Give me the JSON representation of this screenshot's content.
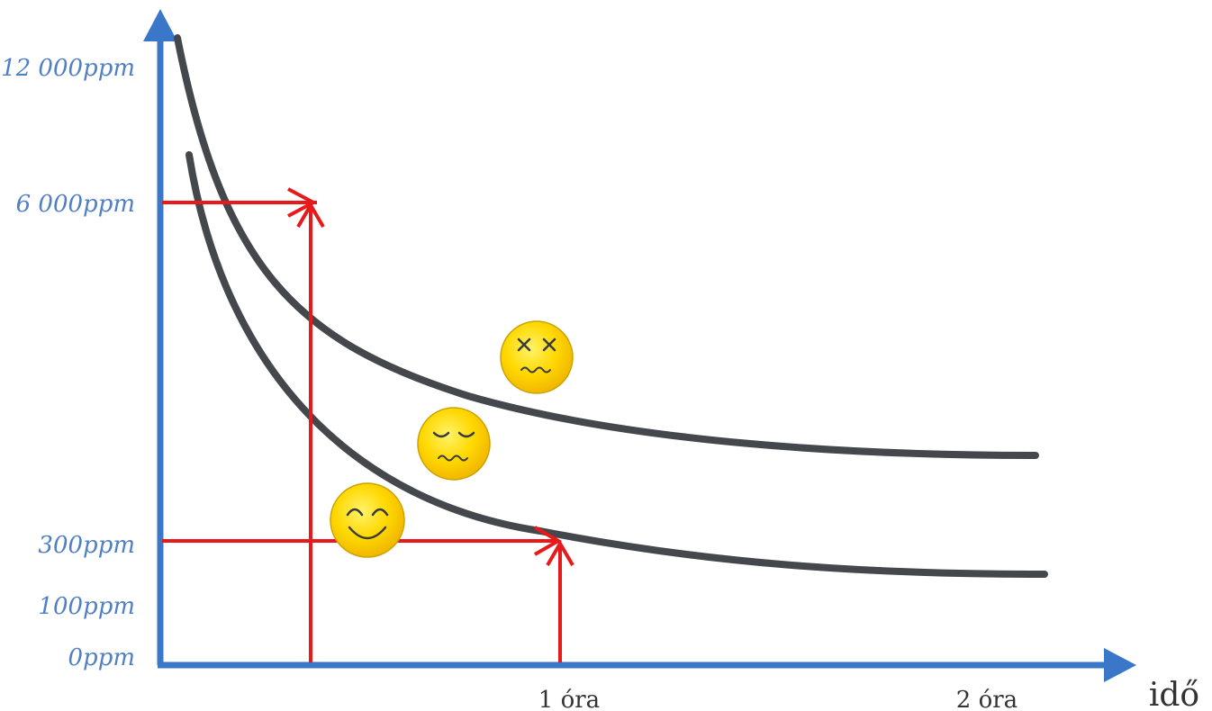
{
  "chart_data": {
    "type": "line",
    "x_axis": {
      "label": "idő",
      "ticks": [
        "1 óra",
        "2 óra"
      ]
    },
    "y_axis": {
      "ticks": [
        "12 000ppm",
        "6 000ppm",
        "300ppm",
        "100ppm",
        "0ppm"
      ]
    },
    "series": [
      {
        "role": "upper-curve",
        "color": "#44474c",
        "shape": "decaying"
      },
      {
        "role": "lower-curve",
        "color": "#44474c",
        "shape": "decaying"
      }
    ],
    "reference_lines": [
      {
        "from_x_tick": null,
        "to_y_tick": "6 000ppm",
        "color": "#e8191b"
      },
      {
        "from_x_tick": "1 óra",
        "to_y_tick": "300ppm",
        "color": "#e8191b"
      }
    ],
    "faces": [
      {
        "name": "dizzy-face-icon",
        "zone": "above-upper-curve"
      },
      {
        "name": "queasy-face-icon",
        "zone": "between-curves"
      },
      {
        "name": "happy-face-icon",
        "zone": "below-lower-curve"
      }
    ],
    "colors": {
      "axis": "#3a77c9",
      "curve": "#44474c",
      "guide": "#e8191b",
      "face_fill": "#ffd700",
      "face_outline": "#caa400"
    }
  }
}
